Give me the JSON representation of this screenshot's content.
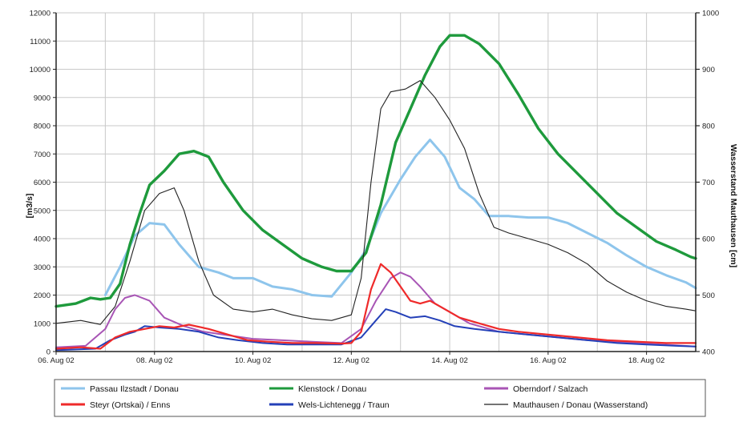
{
  "chart_data": {
    "type": "line",
    "ylabel": "[m3/s]",
    "y2label": "Wasserstand Mauthausen [cm]",
    "xlim": [
      6,
      19
    ],
    "ylim": [
      0,
      12000
    ],
    "y2lim": [
      400,
      1000
    ],
    "x_ticks": [
      {
        "value": 6,
        "label": "06. Aug 02"
      },
      {
        "value": 8,
        "label": "08. Aug 02"
      },
      {
        "value": 10,
        "label": "10. Aug 02"
      },
      {
        "value": 12,
        "label": "12. Aug 02"
      },
      {
        "value": 14,
        "label": "14. Aug 02"
      },
      {
        "value": 16,
        "label": "16. Aug 02"
      },
      {
        "value": 18,
        "label": "18. Aug 02"
      }
    ],
    "y_ticks": [
      "0",
      "1000",
      "2000",
      "3000",
      "4000",
      "5000",
      "6000",
      "7000",
      "8000",
      "9000",
      "10000",
      "11000",
      "12000"
    ],
    "y2_ticks": [
      "400",
      "500",
      "600",
      "700",
      "800",
      "900",
      "1000"
    ],
    "grid": true,
    "legend_position": "bottom",
    "series": [
      {
        "name": "Passau Ilzstadt / Donau",
        "color": "#8ec5ec",
        "axis": "left",
        "points": [
          [
            7,
            2000
          ],
          [
            7.3,
            3000
          ],
          [
            7.6,
            4100
          ],
          [
            7.9,
            4550
          ],
          [
            8.2,
            4500
          ],
          [
            8.5,
            3800
          ],
          [
            8.9,
            3000
          ],
          [
            9.3,
            2800
          ],
          [
            9.6,
            2600
          ],
          [
            10,
            2600
          ],
          [
            10.4,
            2300
          ],
          [
            10.8,
            2200
          ],
          [
            11.2,
            2000
          ],
          [
            11.6,
            1950
          ],
          [
            12,
            2800
          ],
          [
            12.3,
            3600
          ],
          [
            12.6,
            4900
          ],
          [
            13,
            6100
          ],
          [
            13.3,
            6900
          ],
          [
            13.6,
            7500
          ],
          [
            13.9,
            6900
          ],
          [
            14.2,
            5800
          ],
          [
            14.5,
            5400
          ],
          [
            14.8,
            4800
          ],
          [
            15.2,
            4800
          ],
          [
            15.6,
            4750
          ],
          [
            16,
            4750
          ],
          [
            16.4,
            4550
          ],
          [
            16.8,
            4200
          ],
          [
            17.2,
            3850
          ],
          [
            17.6,
            3400
          ],
          [
            18,
            3000
          ],
          [
            18.4,
            2700
          ],
          [
            18.8,
            2450
          ],
          [
            19,
            2250
          ]
        ]
      },
      {
        "name": "Klenstock / Donau",
        "color": "#1e9a3c",
        "axis": "left",
        "points": [
          [
            6,
            1600
          ],
          [
            6.4,
            1700
          ],
          [
            6.7,
            1900
          ],
          [
            6.9,
            1850
          ],
          [
            7.1,
            1900
          ],
          [
            7.3,
            2400
          ],
          [
            7.5,
            3800
          ],
          [
            7.7,
            4900
          ],
          [
            7.9,
            5900
          ],
          [
            8.2,
            6400
          ],
          [
            8.5,
            7000
          ],
          [
            8.8,
            7100
          ],
          [
            9.1,
            6900
          ],
          [
            9.4,
            6000
          ],
          [
            9.8,
            5000
          ],
          [
            10.2,
            4300
          ],
          [
            10.6,
            3800
          ],
          [
            11,
            3300
          ],
          [
            11.4,
            3000
          ],
          [
            11.7,
            2850
          ],
          [
            12,
            2850
          ],
          [
            12.3,
            3500
          ],
          [
            12.6,
            5200
          ],
          [
            12.9,
            7400
          ],
          [
            13.2,
            8600
          ],
          [
            13.5,
            9800
          ],
          [
            13.8,
            10800
          ],
          [
            14,
            11200
          ],
          [
            14.3,
            11200
          ],
          [
            14.6,
            10900
          ],
          [
            15,
            10200
          ],
          [
            15.4,
            9100
          ],
          [
            15.8,
            7900
          ],
          [
            16.2,
            7000
          ],
          [
            16.6,
            6300
          ],
          [
            17,
            5600
          ],
          [
            17.4,
            4900
          ],
          [
            17.8,
            4400
          ],
          [
            18.2,
            3900
          ],
          [
            18.6,
            3600
          ],
          [
            18.9,
            3350
          ],
          [
            19,
            3300
          ]
        ]
      },
      {
        "name": "Oberndorf / Salzach",
        "color": "#a855b5",
        "axis": "left",
        "points": [
          [
            6,
            150
          ],
          [
            6.6,
            200
          ],
          [
            7,
            800
          ],
          [
            7.2,
            1500
          ],
          [
            7.4,
            1900
          ],
          [
            7.6,
            2000
          ],
          [
            7.9,
            1800
          ],
          [
            8.2,
            1200
          ],
          [
            8.6,
            900
          ],
          [
            9,
            700
          ],
          [
            9.6,
            550
          ],
          [
            10,
            450
          ],
          [
            10.6,
            400
          ],
          [
            11.2,
            350
          ],
          [
            11.8,
            300
          ],
          [
            12.2,
            800
          ],
          [
            12.5,
            1800
          ],
          [
            12.8,
            2600
          ],
          [
            13,
            2800
          ],
          [
            13.2,
            2650
          ],
          [
            13.4,
            2300
          ],
          [
            13.7,
            1700
          ],
          [
            14,
            1400
          ],
          [
            14.4,
            1000
          ],
          [
            15,
            700
          ],
          [
            15.6,
            600
          ],
          [
            16.2,
            500
          ],
          [
            16.8,
            400
          ],
          [
            17.4,
            350
          ],
          [
            18,
            280
          ],
          [
            18.6,
            220
          ],
          [
            19,
            180
          ]
        ]
      },
      {
        "name": "Steyr (Ortskai) / Enns",
        "color": "#ef2a2a",
        "axis": "left",
        "points": [
          [
            6,
            100
          ],
          [
            6.5,
            150
          ],
          [
            6.9,
            100
          ],
          [
            7.2,
            500
          ],
          [
            7.5,
            700
          ],
          [
            7.8,
            800
          ],
          [
            8.1,
            900
          ],
          [
            8.4,
            850
          ],
          [
            8.7,
            950
          ],
          [
            9.1,
            800
          ],
          [
            9.5,
            600
          ],
          [
            9.9,
            400
          ],
          [
            10.3,
            350
          ],
          [
            10.8,
            300
          ],
          [
            11.3,
            300
          ],
          [
            11.8,
            280
          ],
          [
            12,
            300
          ],
          [
            12.2,
            700
          ],
          [
            12.4,
            2200
          ],
          [
            12.6,
            3100
          ],
          [
            12.8,
            2800
          ],
          [
            13,
            2300
          ],
          [
            13.2,
            1800
          ],
          [
            13.4,
            1700
          ],
          [
            13.6,
            1800
          ],
          [
            13.9,
            1500
          ],
          [
            14.2,
            1200
          ],
          [
            14.6,
            1000
          ],
          [
            15,
            800
          ],
          [
            15.4,
            700
          ],
          [
            16,
            600
          ],
          [
            16.6,
            500
          ],
          [
            17.2,
            400
          ],
          [
            17.8,
            350
          ],
          [
            18.4,
            300
          ],
          [
            19,
            300
          ]
        ]
      },
      {
        "name": "Wels-Lichtenegg / Traun",
        "color": "#2440b8",
        "axis": "left",
        "points": [
          [
            6,
            50
          ],
          [
            6.8,
            100
          ],
          [
            7.1,
            400
          ],
          [
            7.4,
            600
          ],
          [
            7.6,
            700
          ],
          [
            7.8,
            900
          ],
          [
            8.1,
            850
          ],
          [
            8.5,
            800
          ],
          [
            8.9,
            700
          ],
          [
            9.3,
            500
          ],
          [
            9.7,
            400
          ],
          [
            10.2,
            300
          ],
          [
            10.7,
            250
          ],
          [
            11.2,
            250
          ],
          [
            11.8,
            250
          ],
          [
            12.2,
            500
          ],
          [
            12.5,
            1100
          ],
          [
            12.7,
            1500
          ],
          [
            12.9,
            1400
          ],
          [
            13.2,
            1200
          ],
          [
            13.5,
            1250
          ],
          [
            13.8,
            1100
          ],
          [
            14.1,
            900
          ],
          [
            14.5,
            800
          ],
          [
            15,
            700
          ],
          [
            15.6,
            600
          ],
          [
            16.2,
            500
          ],
          [
            16.8,
            400
          ],
          [
            17.4,
            300
          ],
          [
            18,
            250
          ],
          [
            18.6,
            200
          ],
          [
            19,
            180
          ]
        ]
      },
      {
        "name": "Mauthausen /  Donau (Wasserstand)",
        "color": "#222222",
        "axis": "right",
        "points": [
          [
            6,
            450
          ],
          [
            6.5,
            455
          ],
          [
            6.9,
            448
          ],
          [
            7.2,
            480
          ],
          [
            7.5,
            560
          ],
          [
            7.8,
            650
          ],
          [
            8.1,
            680
          ],
          [
            8.4,
            690
          ],
          [
            8.6,
            650
          ],
          [
            8.9,
            560
          ],
          [
            9.2,
            500
          ],
          [
            9.6,
            475
          ],
          [
            10,
            470
          ],
          [
            10.4,
            475
          ],
          [
            10.8,
            465
          ],
          [
            11.2,
            458
          ],
          [
            11.6,
            455
          ],
          [
            12,
            465
          ],
          [
            12.2,
            530
          ],
          [
            12.4,
            700
          ],
          [
            12.6,
            830
          ],
          [
            12.8,
            860
          ],
          [
            13.1,
            865
          ],
          [
            13.4,
            880
          ],
          [
            13.7,
            850
          ],
          [
            14,
            810
          ],
          [
            14.3,
            760
          ],
          [
            14.6,
            680
          ],
          [
            14.9,
            620
          ],
          [
            15.2,
            610
          ],
          [
            15.6,
            600
          ],
          [
            16,
            590
          ],
          [
            16.4,
            575
          ],
          [
            16.8,
            555
          ],
          [
            17.2,
            525
          ],
          [
            17.6,
            505
          ],
          [
            18,
            490
          ],
          [
            18.4,
            480
          ],
          [
            18.8,
            475
          ],
          [
            19,
            472
          ]
        ]
      }
    ]
  }
}
